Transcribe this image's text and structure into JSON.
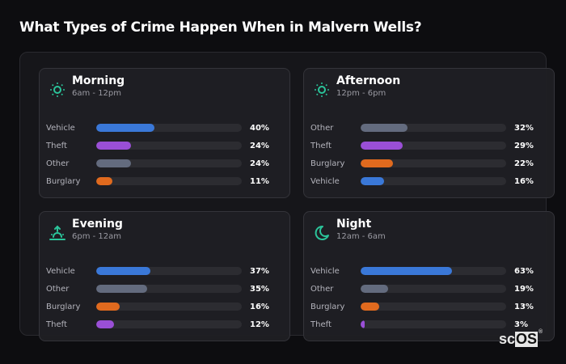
{
  "header": {
    "title": "What Types of Crime Happen When in Malvern Wells?"
  },
  "colors": {
    "Vehicle": "#3a78d8",
    "Theft": "#9a4fd6",
    "Other": "#636b7e",
    "Burglary": "#e06a1e",
    "icon": "#2bc49a"
  },
  "cards": [
    {
      "title": "Morning",
      "subtitle": "6am - 12pm",
      "icon": "sun-icon",
      "rows": [
        {
          "label": "Vehicle",
          "value": 40,
          "display": "40%"
        },
        {
          "label": "Theft",
          "value": 24,
          "display": "24%"
        },
        {
          "label": "Other",
          "value": 24,
          "display": "24%"
        },
        {
          "label": "Burglary",
          "value": 11,
          "display": "11%"
        }
      ]
    },
    {
      "title": "Afternoon",
      "subtitle": "12pm - 6pm",
      "icon": "sun-icon",
      "rows": [
        {
          "label": "Other",
          "value": 32,
          "display": "32%"
        },
        {
          "label": "Theft",
          "value": 29,
          "display": "29%"
        },
        {
          "label": "Burglary",
          "value": 22,
          "display": "22%"
        },
        {
          "label": "Vehicle",
          "value": 16,
          "display": "16%"
        }
      ]
    },
    {
      "title": "Evening",
      "subtitle": "6pm - 12am",
      "icon": "sunset-icon",
      "rows": [
        {
          "label": "Vehicle",
          "value": 37,
          "display": "37%"
        },
        {
          "label": "Other",
          "value": 35,
          "display": "35%"
        },
        {
          "label": "Burglary",
          "value": 16,
          "display": "16%"
        },
        {
          "label": "Theft",
          "value": 12,
          "display": "12%"
        }
      ]
    },
    {
      "title": "Night",
      "subtitle": "12am - 6am",
      "icon": "moon-icon",
      "rows": [
        {
          "label": "Vehicle",
          "value": 63,
          "display": "63%"
        },
        {
          "label": "Other",
          "value": 19,
          "display": "19%"
        },
        {
          "label": "Burglary",
          "value": 13,
          "display": "13%"
        },
        {
          "label": "Theft",
          "value": 3,
          "display": "3%"
        }
      ]
    }
  ],
  "logo": {
    "sc": "sc",
    "os": "OS",
    "reg": "®"
  },
  "chart_data": [
    {
      "type": "bar",
      "orientation": "horizontal",
      "title": "Morning",
      "subtitle": "6am - 12pm",
      "categories": [
        "Vehicle",
        "Theft",
        "Other",
        "Burglary"
      ],
      "values": [
        40,
        24,
        24,
        11
      ],
      "unit": "%",
      "xlim": [
        0,
        100
      ]
    },
    {
      "type": "bar",
      "orientation": "horizontal",
      "title": "Afternoon",
      "subtitle": "12pm - 6pm",
      "categories": [
        "Other",
        "Theft",
        "Burglary",
        "Vehicle"
      ],
      "values": [
        32,
        29,
        22,
        16
      ],
      "unit": "%",
      "xlim": [
        0,
        100
      ]
    },
    {
      "type": "bar",
      "orientation": "horizontal",
      "title": "Evening",
      "subtitle": "6pm - 12am",
      "categories": [
        "Vehicle",
        "Other",
        "Burglary",
        "Theft"
      ],
      "values": [
        37,
        35,
        16,
        12
      ],
      "unit": "%",
      "xlim": [
        0,
        100
      ]
    },
    {
      "type": "bar",
      "orientation": "horizontal",
      "title": "Night",
      "subtitle": "12am - 6am",
      "categories": [
        "Vehicle",
        "Other",
        "Burglary",
        "Theft"
      ],
      "values": [
        63,
        19,
        13,
        3
      ],
      "unit": "%",
      "xlim": [
        0,
        100
      ]
    }
  ]
}
